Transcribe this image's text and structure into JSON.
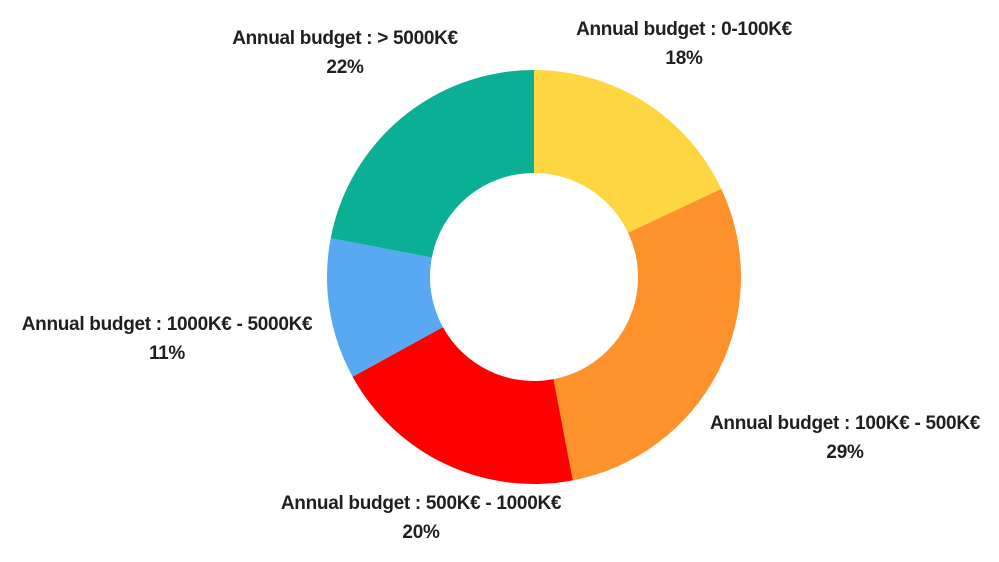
{
  "chart_data": {
    "type": "pie",
    "donut": true,
    "title": "",
    "slices": [
      {
        "label": "Annual budget : 0-100K€",
        "value": 18,
        "value_label": "18%",
        "color": "#FDD642"
      },
      {
        "label": "Annual budget : 100K€ - 500K€",
        "value": 29,
        "value_label": "29%",
        "color": "#FD912C"
      },
      {
        "label": "Annual budget : 500K€ - 1000K€",
        "value": 20,
        "value_label": "20%",
        "color": "#FE0000"
      },
      {
        "label": "Annual budget : 1000K€ - 5000K€",
        "value": 11,
        "value_label": "11%",
        "color": "#58A9F2"
      },
      {
        "label": "Annual budget : > 5000K€",
        "value": 22,
        "value_label": "22%",
        "color": "#0AAF95"
      }
    ]
  }
}
